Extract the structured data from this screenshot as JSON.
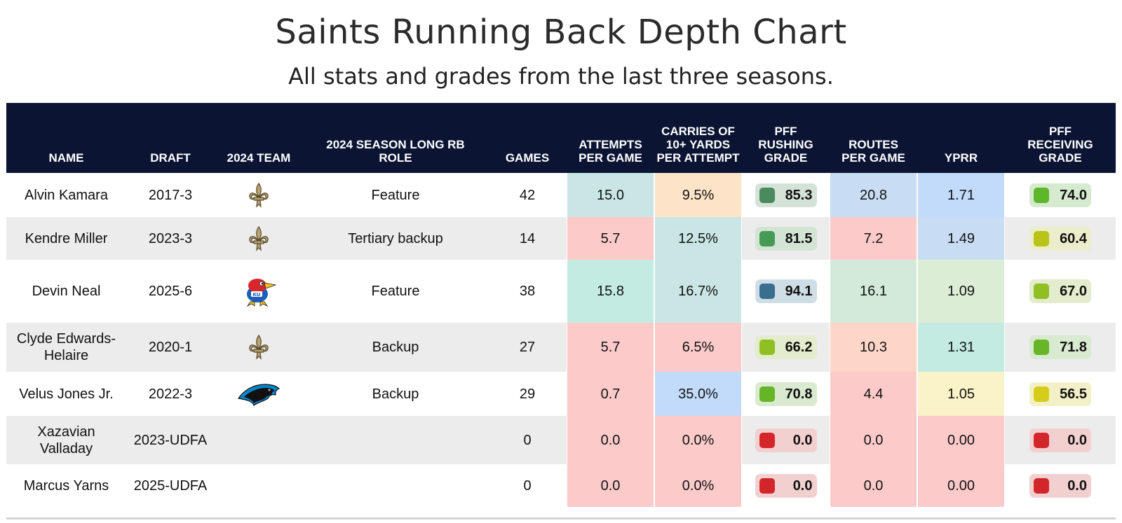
{
  "title": "Saints Running Back Depth Chart",
  "subtitle": "All stats and grades from the last three seasons.",
  "columns": [
    "NAME",
    "DRAFT",
    "2024 TEAM",
    "2024 SEASON LONG RB ROLE",
    "GAMES",
    "ATTEMPTS PER GAME",
    "CARRIES OF 10+ YARDS PER ATTEMPT",
    "PFF RUSHING GRADE",
    "ROUTES PER GAME",
    "YPRR",
    "PFF RECEIVING GRADE"
  ],
  "chart_data": {
    "type": "table",
    "title": "Saints Running Back Depth Chart",
    "subtitle": "All stats and grades from the last three seasons.",
    "rows": [
      {
        "name": "Alvin Kamara",
        "draft": "2017-3",
        "team": "saints-logo",
        "role": "Feature",
        "games": "42",
        "attempts": "15.0",
        "carries10": "9.5%",
        "rush_grade": "85.3",
        "routes": "20.8",
        "yprr": "1.71",
        "rec_grade": "74.0"
      },
      {
        "name": "Kendre Miller",
        "draft": "2023-3",
        "team": "saints-logo",
        "role": "Tertiary backup",
        "games": "14",
        "attempts": "5.7",
        "carries10": "12.5%",
        "rush_grade": "81.5",
        "routes": "7.2",
        "yprr": "1.49",
        "rec_grade": "60.4"
      },
      {
        "name": "Devin Neal",
        "draft": "2025-6",
        "team": "jayhawk-logo",
        "role": "Feature",
        "games": "38",
        "attempts": "15.8",
        "carries10": "16.7%",
        "rush_grade": "94.1",
        "routes": "16.1",
        "yprr": "1.09",
        "rec_grade": "67.0"
      },
      {
        "name": "Clyde Edwards-Helaire",
        "draft": "2020-1",
        "team": "saints-logo",
        "role": "Backup",
        "games": "27",
        "attempts": "5.7",
        "carries10": "6.5%",
        "rush_grade": "66.2",
        "routes": "10.3",
        "yprr": "1.31",
        "rec_grade": "71.8"
      },
      {
        "name": "Velus Jones Jr.",
        "draft": "2022-3",
        "team": "panthers-logo",
        "role": "Backup",
        "games": "29",
        "attempts": "0.7",
        "carries10": "35.0%",
        "rush_grade": "70.8",
        "routes": "4.4",
        "yprr": "1.05",
        "rec_grade": "56.5"
      },
      {
        "name": "Xazavian Valladay",
        "draft": "2023-UDFA",
        "team": "",
        "role": "",
        "games": "0",
        "attempts": "0.0",
        "carries10": "0.0%",
        "rush_grade": "0.0",
        "routes": "0.0",
        "yprr": "0.00",
        "rec_grade": "0.0"
      },
      {
        "name": "Marcus Yarns",
        "draft": "2025-UDFA",
        "team": "",
        "role": "",
        "games": "0",
        "attempts": "0.0",
        "carries10": "0.0%",
        "rush_grade": "0.0",
        "routes": "0.0",
        "yprr": "0.00",
        "rec_grade": "0.0"
      }
    ],
    "cell_colors": {
      "attempts": [
        "#c9e6e4",
        "#fdcaca",
        "#c3ebe2",
        "#fdcaca",
        "#fdcaca",
        "#fdcaca",
        "#fdcaca"
      ],
      "carries10": [
        "#fde3c8",
        "#c9e6e4",
        "#c9e6e4",
        "#fdcaca",
        "#c2dbfb",
        "#fdcaca",
        "#fdcaca"
      ],
      "routes": [
        "#c8ddf3",
        "#fdcaca",
        "#d3eadb",
        "#fdd6c8",
        "#fdcaca",
        "#fdcaca",
        "#fdcaca"
      ],
      "yprr": [
        "#c2dbfb",
        "#c8ddf3",
        "#dcedd6",
        "#c3ebe2",
        "#fbf3c8",
        "#fdcaca",
        "#fdcaca"
      ]
    },
    "rush_grade_colors": {
      "square": [
        "#4a8a5e",
        "#459a55",
        "#3a6e8e",
        "#8fbf22",
        "#65b526",
        "#d3262a",
        "#d3262a"
      ],
      "pill": [
        "#d4e2d8",
        "#d3e4d4",
        "#cfdee6",
        "#e3eccc",
        "#d9ead0",
        "#f3d0d0",
        "#f3d0d0"
      ]
    },
    "rec_grade_colors": {
      "square": [
        "#5cb82a",
        "#bac418",
        "#8fbf22",
        "#68b526",
        "#d6cc1a",
        "#d3262a",
        "#d3262a"
      ],
      "pill": [
        "#d6ead0",
        "#ecedca",
        "#e3eccc",
        "#d8ead0",
        "#f3f0c8",
        "#f3d0d0",
        "#f3d0d0"
      ]
    }
  },
  "colors": {
    "header_bg": "#0b1433",
    "row_alt_bg": "#ececec",
    "saints_gold": "#b8a173",
    "panthers_blue": "#0085ca"
  }
}
